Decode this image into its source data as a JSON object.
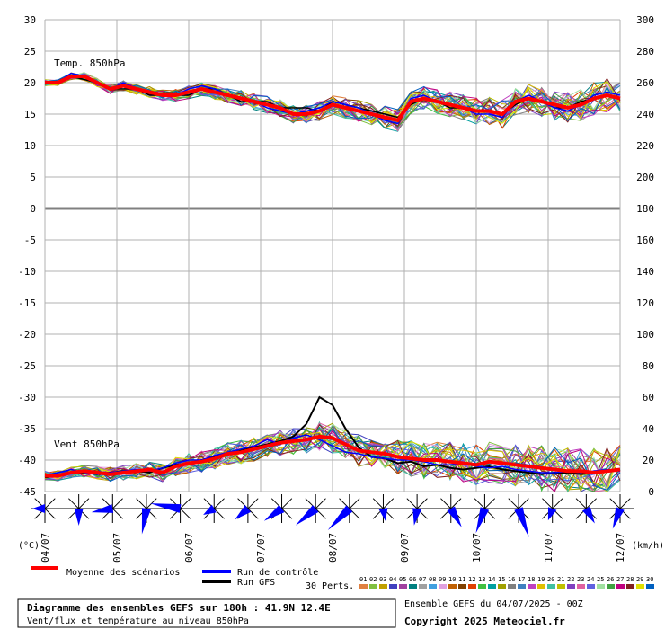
{
  "chart_data": {
    "type": "line",
    "title": "Diagramme des ensembles GEFS sur 180h : 41.9N 12.4E",
    "subtitle": "Vent/flux et température au niveau 850hPa",
    "run_label": "Ensemble GEFS du 04/07/2025 - 00Z",
    "copyright": "Copyright 2025 Meteociel.fr",
    "left_axis": {
      "unit_label": "(°C)",
      "ticks": [
        30,
        25,
        20,
        15,
        10,
        5,
        0,
        -5,
        -10,
        -15,
        -20,
        -25,
        -30,
        -35,
        -40,
        -45
      ],
      "ylim": [
        -45,
        30
      ]
    },
    "right_axis": {
      "unit_label": "(km/h)",
      "ticks": [
        300,
        280,
        260,
        240,
        220,
        200,
        180,
        160,
        140,
        120,
        100,
        80,
        60,
        40,
        20,
        0
      ]
    },
    "x_dates": [
      "04/07",
      "05/07",
      "06/07",
      "07/07",
      "08/07",
      "09/07",
      "10/07",
      "11/07",
      "12/07"
    ],
    "hours_per_step": 6,
    "panels": {
      "temperature": "Temp. 850hPa",
      "wind": "Vent 850hPa"
    },
    "temperature_mean": [
      20,
      20,
      21,
      21,
      20,
      19,
      19.5,
      19,
      18.5,
      18,
      18,
      18.5,
      19,
      18.5,
      18,
      17.5,
      17,
      16.5,
      16,
      15,
      15,
      15.5,
      16.5,
      16,
      15.5,
      15,
      14.5,
      14,
      17,
      17.5,
      17,
      16.5,
      16,
      15.5,
      15.5,
      15,
      17,
      17.5,
      17,
      16.5,
      16,
      16.5,
      17.5,
      18,
      17.5
    ],
    "temperature_control": [
      20,
      20,
      21.5,
      21,
      20,
      19,
      20,
      19,
      18.5,
      18,
      18,
      19,
      19.5,
      19,
      18,
      17.5,
      17,
      16,
      15.5,
      15,
      15.5,
      16,
      17,
      16.5,
      16,
      15,
      14,
      13.5,
      17.5,
      18,
      17,
      16.5,
      16,
      15,
      15,
      14.5,
      17,
      18,
      17,
      16,
      15.5,
      16.5,
      18,
      18.5,
      18
    ],
    "temperature_gfs": [
      20,
      20,
      21,
      20.5,
      20,
      19,
      19,
      19,
      18,
      18,
      18,
      18,
      19,
      19,
      18,
      17,
      17,
      17,
      16,
      16,
      16,
      15.5,
      17,
      16.5,
      16,
      15.5,
      15,
      14.5,
      16.5,
      17.5,
      17,
      16,
      16,
      15.5,
      15.5,
      15,
      16.5,
      17.5,
      17,
      16,
      16,
      17,
      17.5,
      18,
      17.5
    ],
    "wind_kmh_mean": [
      10,
      10,
      12,
      13,
      12,
      11,
      12,
      13,
      14,
      12,
      16,
      18,
      19,
      21,
      24,
      25,
      27,
      29,
      31,
      32,
      33,
      35,
      34,
      30,
      26,
      25,
      24,
      22,
      21,
      20,
      20,
      19,
      18,
      17,
      19,
      18,
      17,
      16,
      15,
      14,
      13,
      13,
      12,
      13,
      14
    ],
    "wind_kmh_control": [
      10,
      12,
      14,
      12,
      11,
      12,
      13,
      14,
      13,
      15,
      18,
      20,
      20,
      23,
      25,
      27,
      29,
      33,
      30,
      34,
      36,
      33,
      29,
      25,
      24,
      22,
      21,
      20,
      20,
      19,
      17,
      17,
      18,
      16,
      15,
      16,
      14,
      13,
      12,
      12,
      13,
      12,
      13,
      14,
      13
    ],
    "wind_kmh_gfs": [
      9,
      10,
      12,
      12,
      11,
      12,
      13,
      13,
      12,
      15,
      17,
      18,
      20,
      22,
      24,
      26,
      28,
      30,
      32,
      35,
      43,
      60,
      55,
      40,
      28,
      22,
      21,
      18,
      19,
      16,
      17,
      15,
      14,
      15,
      16,
      14,
      13,
      12,
      11,
      12,
      12,
      11,
      12,
      13,
      14
    ],
    "wind_direction_arrows": [
      90,
      0,
      80,
      10,
      100,
      60,
      50,
      55,
      50,
      45,
      350,
      10,
      330,
      20,
      340,
      20,
      330,
      20
    ],
    "legend": {
      "mean": "Moyenne des scénarios",
      "control": "Run de contrôle",
      "gfs": "Run GFS",
      "perts_label": "30 Perts.",
      "perts": [
        "01",
        "02",
        "03",
        "04",
        "05",
        "06",
        "07",
        "08",
        "09",
        "10",
        "11",
        "12",
        "13",
        "14",
        "15",
        "16",
        "17",
        "18",
        "19",
        "20",
        "21",
        "22",
        "23",
        "24",
        "25",
        "26",
        "27",
        "28",
        "29",
        "30"
      ]
    },
    "colors": {
      "mean": "#ff0000",
      "control": "#0000ff",
      "gfs": "#000000",
      "grid": "#b0b0b0",
      "zero": "#808080"
    },
    "pert_colors": [
      "#e08040",
      "#80c040",
      "#c0a000",
      "#4040c0",
      "#a040a0",
      "#008080",
      "#a0a0a0",
      "#40a0e0",
      "#e0a0e0",
      "#c06000",
      "#804000",
      "#e04000",
      "#40c040",
      "#00a0a0",
      "#a0a000",
      "#808080",
      "#4080c0",
      "#c040c0",
      "#e0c000",
      "#40c0a0",
      "#c0c000",
      "#8040c0",
      "#e060a0",
      "#6060e0",
      "#a0e0a0",
      "#40a040",
      "#c00080",
      "#802020",
      "#e0e000",
      "#0060c0"
    ]
  }
}
